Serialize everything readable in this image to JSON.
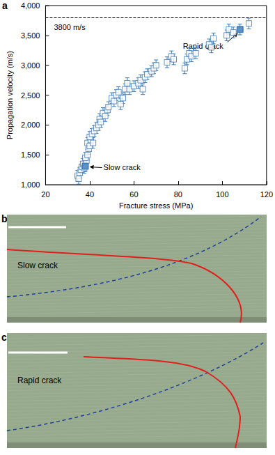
{
  "chart_data": {
    "type": "scatter",
    "panel_label": "a",
    "x_label": "Fracture stress (MPa)",
    "y_label": "Propagation velocity (m/s)",
    "x": [
      34.5,
      35,
      35.5,
      36,
      36.5,
      37,
      37.5,
      38,
      38.5,
      38,
      39,
      39.5,
      39,
      40,
      40.5,
      40,
      41,
      41.5,
      42,
      43,
      44,
      44.5,
      45,
      46,
      47,
      48,
      48.5,
      50,
      51,
      52,
      53,
      54,
      55,
      56,
      57,
      58,
      60,
      62,
      63,
      64,
      65,
      66,
      68,
      69,
      70,
      75,
      77,
      78,
      83,
      84,
      85,
      86,
      88,
      94,
      95,
      96,
      102,
      103,
      105,
      108,
      112
    ],
    "values": [
      1150,
      1100,
      1200,
      1250,
      1300,
      1350,
      1280,
      1310,
      1400,
      1450,
      1500,
      1600,
      1700,
      1650,
      1750,
      1800,
      1850,
      1700,
      1900,
      1950,
      2000,
      2100,
      2050,
      2200,
      2150,
      2250,
      2300,
      2450,
      2400,
      2500,
      2550,
      2350,
      2450,
      2600,
      2700,
      2600,
      2650,
      2700,
      2750,
      2600,
      2800,
      2850,
      2900,
      2950,
      3000,
      3050,
      3150,
      3100,
      2950,
      3100,
      3200,
      3150,
      3200,
      3350,
      3300,
      3450,
      3500,
      3600,
      3550,
      3600,
      3700
    ],
    "errors": [
      90,
      90,
      90,
      90,
      90,
      90,
      90,
      90,
      90,
      90,
      90,
      90,
      90,
      90,
      90,
      90,
      90,
      90,
      90,
      90,
      90,
      90,
      90,
      90,
      90,
      90,
      90,
      90,
      90,
      90,
      90,
      90,
      90,
      90,
      90,
      90,
      90,
      90,
      90,
      90,
      90,
      90,
      90,
      90,
      90,
      90,
      90,
      90,
      90,
      90,
      90,
      90,
      90,
      90,
      90,
      90,
      90,
      90,
      90,
      90,
      90
    ],
    "color": "#3a78b5",
    "marker": "square",
    "xlim": [
      20,
      120
    ],
    "xticks": [
      20,
      40,
      60,
      80,
      100,
      120
    ],
    "ylim": [
      1000,
      4000
    ],
    "yticks": [
      1000,
      1500,
      2000,
      2500,
      3000,
      3500,
      4000
    ],
    "reference_line": {
      "value": 3800,
      "label": "3800 m/s"
    },
    "annotations": [
      {
        "text": "Slow crack",
        "x": 38,
        "y": 1310
      },
      {
        "text": "Rapid crack",
        "x": 108,
        "y": 3600
      }
    ]
  },
  "panels": [
    {
      "label": "b",
      "text": "Slow crack"
    },
    {
      "label": "c",
      "text": "Rapid crack"
    }
  ]
}
